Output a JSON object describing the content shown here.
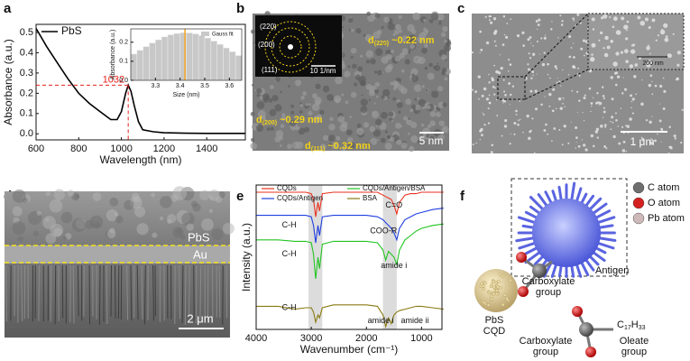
{
  "panel_labels": [
    "a",
    "b",
    "c",
    "d",
    "e",
    "f"
  ],
  "chart_data": [
    {
      "type": "line",
      "x": [
        600,
        650,
        700,
        750,
        800,
        850,
        900,
        950,
        980,
        1000,
        1020,
        1032,
        1045,
        1060,
        1080,
        1100,
        1150,
        1200,
        1300,
        1400,
        1500,
        1580
      ],
      "series": [
        {
          "name": "PbS",
          "color": "#000000",
          "values": [
            0.52,
            0.43,
            0.35,
            0.27,
            0.2,
            0.15,
            0.11,
            0.07,
            0.07,
            0.11,
            0.2,
            0.24,
            0.21,
            0.14,
            0.06,
            0.02,
            0.01,
            0.005,
            0.003,
            0.002,
            0.002,
            0.002
          ]
        }
      ],
      "xlim": [
        600,
        1581
      ],
      "ylim": [
        -0.03,
        0.54
      ],
      "xticks": [
        600,
        800,
        1000,
        1200,
        1400
      ],
      "yticks": [
        {
          "value": 0,
          "label": "0.0"
        },
        0.1,
        0.2,
        0.3,
        0.4,
        0.5
      ],
      "xlabel": "Wavelength (nm)",
      "ylabel": "Absorbance (a.u.)",
      "legend": "upper-left",
      "annotations": [
        {
          "text": "1032",
          "x": 1032,
          "y": 0.24,
          "color": "#e8221c"
        }
      ]
    },
    {
      "type": "histogram",
      "bins": [
        3.2,
        3.225,
        3.25,
        3.275,
        3.3,
        3.325,
        3.35,
        3.375,
        3.4,
        3.425,
        3.45,
        3.475,
        3.5,
        3.525,
        3.55,
        3.575,
        3.6,
        3.625,
        3.65
      ],
      "values": [
        0.138,
        0.158,
        0.177,
        0.196,
        0.213,
        0.228,
        0.239,
        0.246,
        0.25,
        0.249,
        0.244,
        0.235,
        0.222,
        0.206,
        0.189,
        0.17,
        0.15,
        0.13
      ],
      "name": "Gauss fit",
      "color": "#c8c8c8",
      "highlight_x": 3.42,
      "highlight_color": "#f5a623",
      "xlim": [
        3.2,
        3.65
      ],
      "ylim": [
        0,
        0.27
      ],
      "xticks": [
        3.3,
        3.4,
        3.5,
        3.6
      ],
      "yticks": [
        {
          "value": 0,
          "label": "0.0"
        },
        0.1,
        0.2
      ],
      "xlabel": "Size (nm)",
      "ylabel": "Absorbance (a.u.)",
      "legend": "upper-right"
    },
    {
      "type": "line",
      "x": [
        4000,
        3600,
        3300,
        3100,
        3000,
        2960,
        2920,
        2880,
        2850,
        2800,
        2600,
        2400,
        2200,
        2000,
        1800,
        1700,
        1650,
        1600,
        1550,
        1500,
        1450,
        1400,
        1300,
        1200,
        1100,
        1000,
        800,
        600
      ],
      "series": [
        {
          "name": "CQDs",
          "color": "#e8321e",
          "values": [
            95,
            95,
            95,
            95,
            94,
            90,
            78,
            88,
            82,
            94,
            95,
            95,
            95,
            95,
            95,
            93,
            92,
            91,
            90,
            86,
            80,
            88,
            93,
            94,
            94,
            95,
            95,
            95
          ]
        },
        {
          "name": "CQDs/Antigen",
          "color": "#1f3fe0",
          "values": [
            79,
            79,
            79,
            79,
            78,
            72,
            60,
            72,
            65,
            78,
            79,
            79,
            79,
            79,
            78,
            76,
            74,
            72,
            70,
            67,
            62,
            70,
            76,
            78,
            80,
            81,
            83,
            84
          ]
        },
        {
          "name": "CQDs/Antigen/BSA",
          "color": "#22c422",
          "values": [
            62,
            62,
            61,
            61,
            60,
            52,
            35,
            50,
            42,
            59,
            61,
            61,
            61,
            61,
            60,
            55,
            48,
            54,
            52,
            50,
            45,
            55,
            62,
            65,
            68,
            70,
            72,
            73
          ]
        },
        {
          "name": "BSA",
          "color": "#8a7a12",
          "values": [
            16,
            16,
            14,
            15,
            15,
            12,
            5,
            10,
            8,
            15,
            17,
            17,
            17,
            17,
            16,
            10,
            2,
            8,
            4,
            10,
            12,
            13,
            14,
            15,
            16,
            16,
            15,
            14
          ]
        }
      ],
      "xlim": [
        4000,
        630
      ],
      "ylim": [
        0,
        100
      ],
      "xticks": [
        4000,
        3000,
        2000,
        1000
      ],
      "xlabel": "Wavenumber (cm⁻¹)",
      "ylabel": "Intensity (a.u.)",
      "legend": "upper-center",
      "highlight_ranges": [
        [
          3050,
          2800
        ],
        [
          1700,
          1450
        ]
      ],
      "annotations": [
        {
          "text": "C-H",
          "x": 3400,
          "y": 72
        },
        {
          "text": "C=O",
          "x": 1500,
          "y": 86
        },
        {
          "text": "C-H",
          "x": 3400,
          "y": 52
        },
        {
          "text": "COO-R",
          "x": 1690,
          "y": 68
        },
        {
          "text": "amide i",
          "x": 1500,
          "y": 44
        },
        {
          "text": "C-H",
          "x": 3400,
          "y": 15
        },
        {
          "text": "amide i",
          "x": 1740,
          "y": 6
        },
        {
          "text": "amide ii",
          "x": 1120,
          "y": 6
        }
      ]
    }
  ],
  "panel_b": {
    "rings": [
      "(220)",
      "(200)",
      "(111)"
    ],
    "inset_scale": "10 1/nm",
    "spacings": [
      {
        "base": "d",
        "sub": "(220)",
        "text": " ~0.22 nm"
      },
      {
        "base": "d",
        "sub": "(200)",
        "text": " ~0.29 nm"
      },
      {
        "base": "d",
        "sub": "(111)",
        "text": " ~0.32 nm"
      }
    ],
    "scale": "5 nm"
  },
  "panel_c": {
    "inset_scale": "200 nm",
    "scale": "1 μm"
  },
  "panel_d": {
    "layers": [
      "PbS",
      "Au"
    ],
    "scale": "2 μm"
  },
  "panel_f": {
    "legend": [
      {
        "name": "C atom",
        "color": "#6e6e6e"
      },
      {
        "name": "O atom",
        "color": "#d42020"
      },
      {
        "name": "Pb atom",
        "color": "#cdb9b9"
      }
    ],
    "antigen": "Antigen",
    "carboxylate_top": [
      "Carboxylate",
      "group"
    ],
    "pbs": [
      "PbS",
      "CQD"
    ],
    "carboxylate_bottom": [
      "Carboxylate",
      "group"
    ],
    "chain": {
      "c": "C",
      "c_n": "17",
      "h": "H",
      "h_n": "33"
    },
    "oleate": [
      "Oleate",
      "group"
    ]
  }
}
